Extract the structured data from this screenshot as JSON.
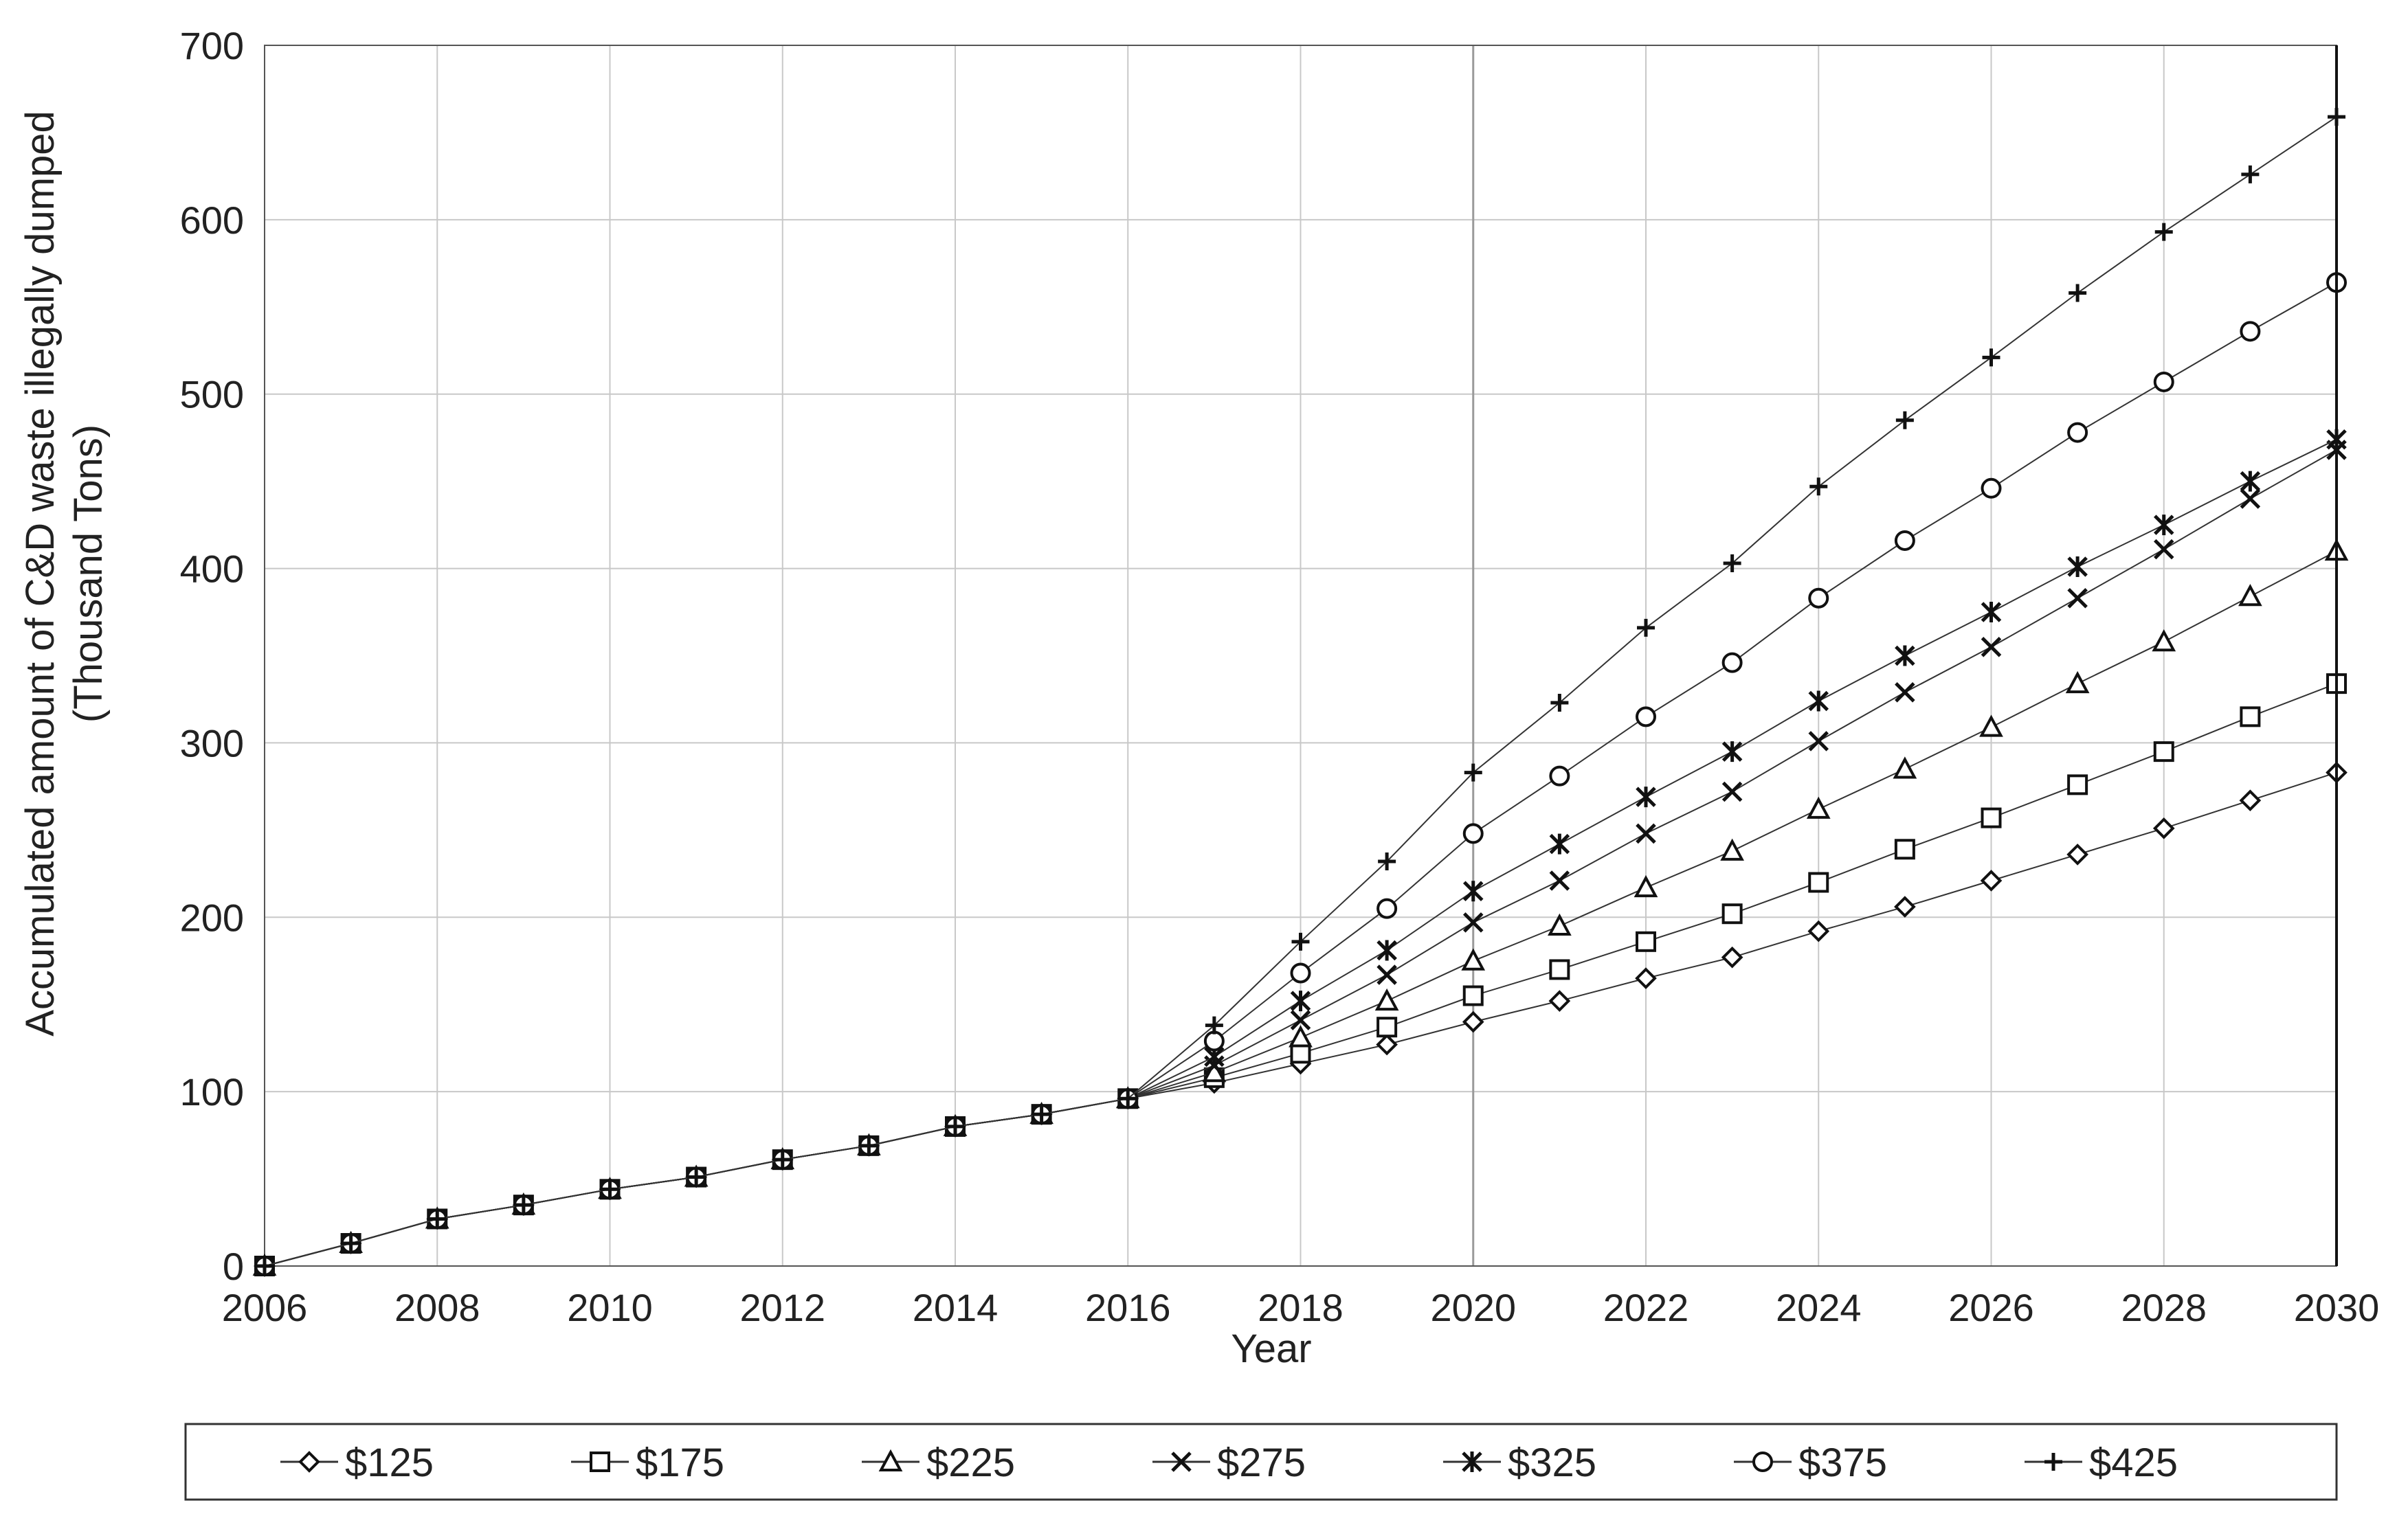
{
  "chart_data": {
    "type": "line",
    "title": "",
    "xlabel": "Year",
    "ylabel": "Accumulated amount of C&D waste illegally dumped",
    "ylabel_line2": "(Thousand Tons)",
    "xlim": [
      2006,
      2030
    ],
    "ylim": [
      0,
      700
    ],
    "xticks": [
      2006,
      2008,
      2010,
      2012,
      2014,
      2016,
      2018,
      2020,
      2022,
      2024,
      2026,
      2028,
      2030
    ],
    "yticks": [
      0,
      100,
      200,
      300,
      400,
      500,
      600,
      700
    ],
    "grid": true,
    "legend_position": "bottom",
    "x": [
      2006,
      2007,
      2008,
      2009,
      2010,
      2011,
      2012,
      2013,
      2014,
      2015,
      2016,
      2017,
      2018,
      2019,
      2020,
      2021,
      2022,
      2023,
      2024,
      2025,
      2026,
      2027,
      2028,
      2029,
      2030
    ],
    "series": [
      {
        "name": "$125",
        "marker": "diamond",
        "values": [
          0,
          13,
          27,
          35,
          44,
          51,
          61,
          69,
          80,
          87,
          96,
          105,
          116,
          127,
          140,
          152,
          165,
          177,
          192,
          206,
          221,
          236,
          251,
          267,
          283
        ]
      },
      {
        "name": "$175",
        "marker": "square",
        "values": [
          0,
          13,
          27,
          35,
          44,
          51,
          61,
          69,
          80,
          87,
          96,
          108,
          122,
          137,
          155,
          170,
          186,
          202,
          220,
          239,
          257,
          276,
          295,
          315,
          334
        ]
      },
      {
        "name": "$225",
        "marker": "triangle",
        "values": [
          0,
          13,
          27,
          35,
          44,
          51,
          61,
          69,
          80,
          87,
          96,
          111,
          131,
          152,
          175,
          195,
          217,
          238,
          262,
          285,
          309,
          334,
          358,
          384,
          410
        ]
      },
      {
        "name": "$275",
        "marker": "x",
        "values": [
          0,
          13,
          27,
          35,
          44,
          51,
          61,
          69,
          80,
          87,
          96,
          115,
          141,
          167,
          197,
          221,
          248,
          272,
          301,
          329,
          355,
          383,
          411,
          440,
          468
        ]
      },
      {
        "name": "$325",
        "marker": "asterisk",
        "values": [
          0,
          13,
          27,
          35,
          44,
          51,
          61,
          69,
          80,
          87,
          96,
          120,
          152,
          181,
          215,
          242,
          269,
          295,
          324,
          350,
          375,
          401,
          425,
          450,
          474
        ]
      },
      {
        "name": "$375",
        "marker": "circle",
        "values": [
          0,
          13,
          27,
          35,
          44,
          51,
          61,
          69,
          80,
          87,
          96,
          129,
          168,
          205,
          248,
          281,
          315,
          346,
          383,
          416,
          446,
          478,
          507,
          536,
          564
        ]
      },
      {
        "name": "$425",
        "marker": "plus",
        "values": [
          0,
          13,
          27,
          35,
          44,
          51,
          61,
          69,
          80,
          87,
          96,
          138,
          186,
          232,
          283,
          323,
          366,
          403,
          447,
          485,
          521,
          558,
          593,
          626,
          659
        ]
      }
    ]
  }
}
